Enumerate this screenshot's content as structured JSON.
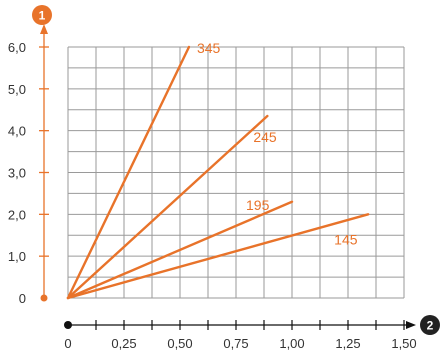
{
  "chart_data": {
    "type": "line",
    "title": "",
    "xlabel": "",
    "ylabel": "",
    "xlim": [
      0,
      1.5
    ],
    "ylim": [
      0,
      6
    ],
    "x_ticks": [
      "0",
      "0,25",
      "0,50",
      "0,75",
      "1,00",
      "1,25",
      "1,50"
    ],
    "y_ticks": [
      "0",
      "1,0",
      "2,0",
      "3,0",
      "4,0",
      "5,0",
      "6,0"
    ],
    "grid": true,
    "x_axis_marker": "2",
    "y_axis_marker": "1",
    "series": [
      {
        "name": "345",
        "points": [
          [
            0,
            0
          ],
          [
            0.54,
            6.0
          ]
        ]
      },
      {
        "name": "245",
        "points": [
          [
            0,
            0
          ],
          [
            0.89,
            4.35
          ]
        ]
      },
      {
        "name": "195",
        "points": [
          [
            0,
            0
          ],
          [
            1.0,
            2.3
          ]
        ]
      },
      {
        "name": "145",
        "points": [
          [
            0,
            0
          ],
          [
            1.34,
            2.0
          ]
        ]
      }
    ],
    "colors": {
      "series": "#e8732a",
      "grid": "#9a9a9a",
      "axis": "#111111",
      "badge_y": "#e8732a",
      "badge_x": "#222222"
    }
  }
}
